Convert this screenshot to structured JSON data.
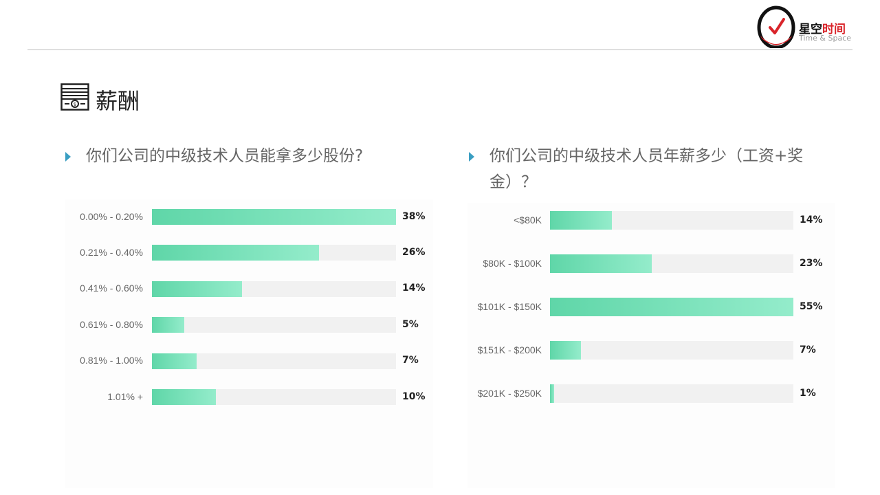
{
  "brand": {
    "name_cn_part1": "星空",
    "name_cn_part2": "时间",
    "name_en": "Time & Space"
  },
  "page": {
    "section_title": "薪酬",
    "section_icon": "money-stack-icon"
  },
  "colors": {
    "bar_start": "#5fd6a8",
    "bar_end": "#94eccb",
    "track": "#f1f1f1",
    "bullet": "#3a9ec2",
    "brand_red": "#d9242a"
  },
  "chart_data": [
    {
      "type": "bar",
      "orientation": "horizontal",
      "title": "你们公司的中级技术人员能拿多少股份?",
      "categories": [
        "0.00% - 0.20%",
        "0.21% - 0.40%",
        "0.41% - 0.60%",
        "0.61% - 0.80%",
        "0.81% - 1.00%",
        "1.01% +"
      ],
      "values": [
        38,
        26,
        14,
        5,
        7,
        10
      ],
      "value_labels": [
        "38%",
        "26%",
        "14%",
        "5%",
        "7%",
        "10%"
      ],
      "xlim": [
        0,
        38
      ]
    },
    {
      "type": "bar",
      "orientation": "horizontal",
      "title": "你们公司的中级技术人员年薪多少（工资+奖金）？",
      "categories": [
        "<$80K",
        "$80K - $100K",
        "$101K - $150K",
        "$151K - $200K",
        "$201K - $250K"
      ],
      "values": [
        14,
        23,
        55,
        7,
        1
      ],
      "value_labels": [
        "14%",
        "23%",
        "55%",
        "7%",
        "1%"
      ],
      "xlim": [
        0,
        55
      ]
    }
  ]
}
